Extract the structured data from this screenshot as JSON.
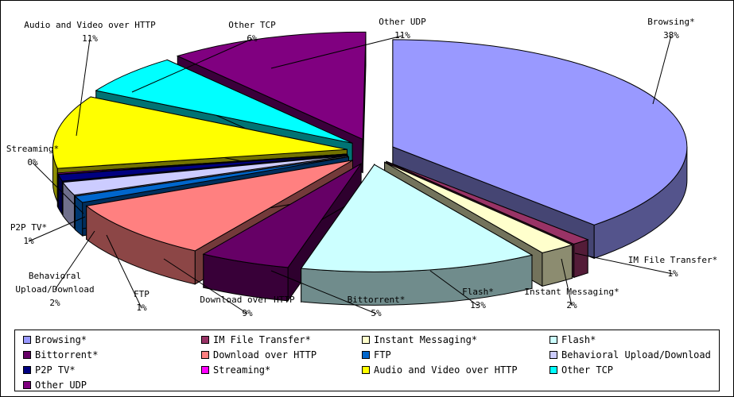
{
  "chart_data": {
    "type": "pie",
    "three_d": true,
    "exploded": true,
    "legend_position": "bottom",
    "slices": [
      {
        "label": "Browsing*",
        "value": 38,
        "value_label": "38%",
        "color": "#9999ff"
      },
      {
        "label": "IM File Transfer*",
        "value": 1,
        "value_label": "1%",
        "color": "#993366"
      },
      {
        "label": "Instant Messaging*",
        "value": 2,
        "value_label": "2%",
        "color": "#ffffcc"
      },
      {
        "label": "Flash*",
        "value": 13,
        "value_label": "13%",
        "color": "#ccffff"
      },
      {
        "label": "Bittorrent*",
        "value": 5,
        "value_label": "5%",
        "color": "#660066"
      },
      {
        "label": "Download over HTTP",
        "value": 9,
        "value_label": "9%",
        "color": "#ff8080"
      },
      {
        "label": "FTP",
        "value": 1,
        "value_label": "1%",
        "color": "#0066cc"
      },
      {
        "label": "Behavioral Upload/Download",
        "value": 2,
        "value_label": "2%",
        "color": "#ccccff"
      },
      {
        "label": "P2P TV*",
        "value": 1,
        "value_label": "1%",
        "color": "#000080"
      },
      {
        "label": "Streaming*",
        "value": 0,
        "value_label": "0%",
        "color": "#ff00ff"
      },
      {
        "label": "Audio and Video over HTTP",
        "value": 11,
        "value_label": "11%",
        "color": "#ffff00"
      },
      {
        "label": "Other TCP",
        "value": 6,
        "value_label": "6%",
        "color": "#00ffff"
      },
      {
        "label": "Other UDP",
        "value": 11,
        "value_label": "11%",
        "color": "#800080"
      }
    ]
  }
}
